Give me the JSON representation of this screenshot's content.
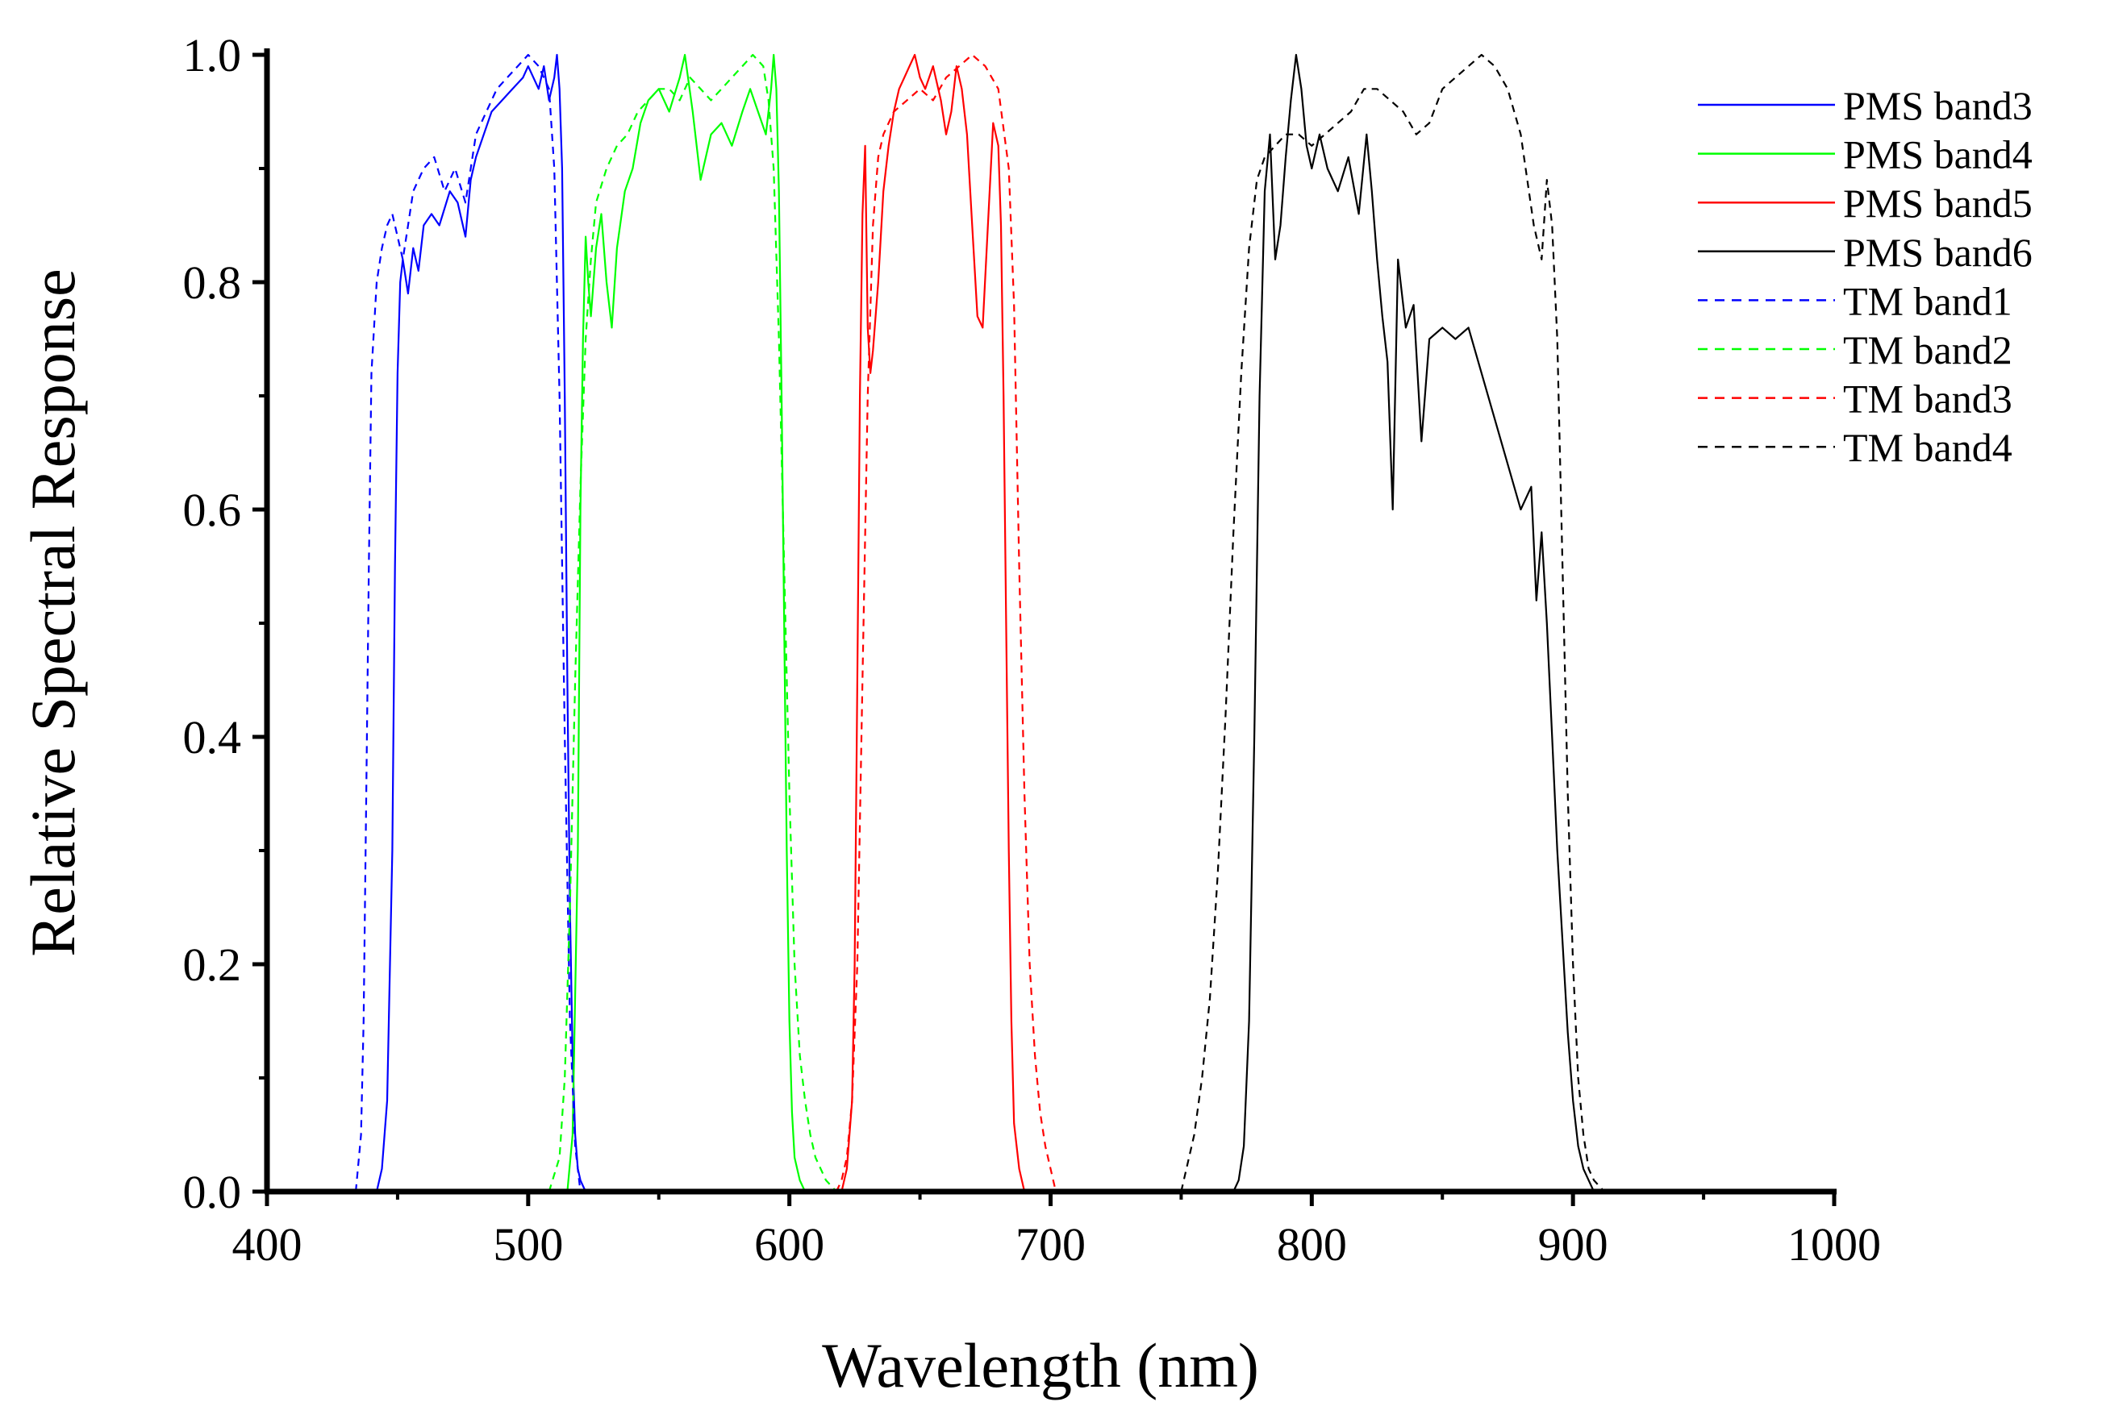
{
  "chart_data": {
    "type": "line",
    "title": "",
    "xlabel": "Wavelength (nm)",
    "ylabel": "Relative Spectral Response",
    "xlim": [
      400,
      1000
    ],
    "ylim": [
      0,
      1.0
    ],
    "grid": false,
    "legend_position": "top-right",
    "xticks": [
      "400",
      "500",
      "600",
      "700",
      "800",
      "900",
      "1000"
    ],
    "yticks": [
      "0.0",
      "0.2",
      "0.4",
      "0.6",
      "0.8",
      "1.0"
    ],
    "series": [
      {
        "name": "PMS band3",
        "color": "#0000ff",
        "dash": "solid",
        "x": [
          442,
          444,
          446,
          448,
          449,
          450,
          451,
          452,
          454,
          456,
          458,
          460,
          463,
          466,
          470,
          473,
          476,
          478,
          480,
          483,
          486,
          490,
          494,
          498,
          500,
          502,
          504,
          506,
          508,
          510,
          511,
          512,
          513,
          514,
          515,
          516,
          517,
          518,
          519,
          520,
          521,
          522
        ],
        "y": [
          0.0,
          0.02,
          0.08,
          0.3,
          0.55,
          0.72,
          0.8,
          0.82,
          0.79,
          0.83,
          0.81,
          0.85,
          0.86,
          0.85,
          0.88,
          0.87,
          0.84,
          0.89,
          0.91,
          0.93,
          0.95,
          0.96,
          0.97,
          0.98,
          0.99,
          0.98,
          0.97,
          0.99,
          0.96,
          0.98,
          1.0,
          0.97,
          0.9,
          0.7,
          0.45,
          0.25,
          0.12,
          0.05,
          0.02,
          0.01,
          0.005,
          0.0
        ]
      },
      {
        "name": "PMS band4",
        "color": "#00ff00",
        "dash": "solid",
        "x": [
          515,
          517,
          519,
          520,
          521,
          522,
          523,
          524,
          526,
          528,
          530,
          532,
          534,
          537,
          540,
          543,
          546,
          550,
          554,
          558,
          560,
          563,
          566,
          570,
          574,
          578,
          582,
          585,
          588,
          591,
          593,
          594,
          595,
          596,
          597,
          598,
          599,
          600,
          601,
          602,
          604,
          606
        ],
        "y": [
          0.0,
          0.05,
          0.3,
          0.6,
          0.75,
          0.84,
          0.8,
          0.77,
          0.83,
          0.86,
          0.8,
          0.76,
          0.83,
          0.88,
          0.9,
          0.94,
          0.96,
          0.97,
          0.95,
          0.98,
          1.0,
          0.95,
          0.89,
          0.93,
          0.94,
          0.92,
          0.95,
          0.97,
          0.95,
          0.93,
          0.97,
          1.0,
          0.97,
          0.88,
          0.7,
          0.5,
          0.3,
          0.15,
          0.07,
          0.03,
          0.01,
          0.0
        ]
      },
      {
        "name": "PMS band5",
        "color": "#ff0000",
        "dash": "solid",
        "x": [
          620,
          622,
          624,
          625,
          626,
          627,
          628,
          629,
          630,
          631,
          632,
          634,
          636,
          638,
          640,
          642,
          644,
          646,
          648,
          650,
          652,
          655,
          658,
          660,
          662,
          664,
          666,
          668,
          670,
          672,
          674,
          676,
          678,
          680,
          681,
          682,
          683,
          684,
          685,
          686,
          688,
          690
        ],
        "y": [
          0.0,
          0.02,
          0.08,
          0.2,
          0.45,
          0.7,
          0.86,
          0.92,
          0.76,
          0.72,
          0.74,
          0.8,
          0.88,
          0.92,
          0.95,
          0.97,
          0.98,
          0.99,
          1.0,
          0.98,
          0.97,
          0.99,
          0.96,
          0.93,
          0.95,
          0.99,
          0.97,
          0.93,
          0.85,
          0.77,
          0.76,
          0.85,
          0.94,
          0.92,
          0.85,
          0.7,
          0.5,
          0.3,
          0.15,
          0.06,
          0.02,
          0.0
        ]
      },
      {
        "name": "PMS band6",
        "color": "#000000",
        "dash": "solid",
        "x": [
          770,
          772,
          774,
          776,
          778,
          780,
          782,
          784,
          786,
          788,
          790,
          792,
          794,
          796,
          798,
          800,
          803,
          806,
          810,
          814,
          818,
          821,
          823,
          825,
          827,
          829,
          831,
          833,
          836,
          839,
          842,
          845,
          850,
          855,
          860,
          865,
          870,
          875,
          880,
          884,
          886,
          888,
          890,
          892,
          894,
          896,
          898,
          900,
          902,
          904,
          906,
          908
        ],
        "y": [
          0.0,
          0.01,
          0.04,
          0.15,
          0.4,
          0.7,
          0.88,
          0.93,
          0.82,
          0.85,
          0.91,
          0.96,
          1.0,
          0.97,
          0.92,
          0.9,
          0.93,
          0.9,
          0.88,
          0.91,
          0.86,
          0.93,
          0.88,
          0.82,
          0.77,
          0.73,
          0.6,
          0.82,
          0.76,
          0.78,
          0.66,
          0.75,
          0.76,
          0.75,
          0.76,
          0.72,
          0.68,
          0.64,
          0.6,
          0.62,
          0.52,
          0.58,
          0.5,
          0.4,
          0.3,
          0.22,
          0.14,
          0.08,
          0.04,
          0.02,
          0.01,
          0.0
        ]
      },
      {
        "name": "TM band1",
        "color": "#0000ff",
        "dash": "dashed",
        "x": [
          434,
          436,
          437,
          438,
          439,
          440,
          442,
          444,
          446,
          448,
          450,
          452,
          454,
          456,
          460,
          464,
          468,
          472,
          476,
          480,
          484,
          488,
          492,
          496,
          500,
          504,
          508,
          510,
          512,
          514,
          516,
          518,
          520
        ],
        "y": [
          0.0,
          0.05,
          0.15,
          0.35,
          0.55,
          0.72,
          0.8,
          0.83,
          0.85,
          0.86,
          0.84,
          0.82,
          0.85,
          0.88,
          0.9,
          0.91,
          0.88,
          0.9,
          0.87,
          0.93,
          0.95,
          0.97,
          0.98,
          0.99,
          1.0,
          0.99,
          0.97,
          0.9,
          0.7,
          0.4,
          0.15,
          0.04,
          0.0
        ]
      },
      {
        "name": "TM band2",
        "color": "#00ff00",
        "dash": "dashed",
        "x": [
          508,
          512,
          514,
          516,
          518,
          520,
          522,
          524,
          526,
          530,
          534,
          538,
          542,
          546,
          550,
          554,
          558,
          562,
          566,
          570,
          574,
          578,
          582,
          586,
          590,
          592,
          594,
          596,
          598,
          600,
          602,
          604,
          606,
          608,
          610,
          614,
          618
        ],
        "y": [
          0.0,
          0.03,
          0.1,
          0.25,
          0.45,
          0.62,
          0.75,
          0.82,
          0.87,
          0.9,
          0.92,
          0.93,
          0.95,
          0.96,
          0.97,
          0.97,
          0.96,
          0.98,
          0.97,
          0.96,
          0.97,
          0.98,
          0.99,
          1.0,
          0.99,
          0.96,
          0.9,
          0.75,
          0.55,
          0.35,
          0.2,
          0.12,
          0.08,
          0.05,
          0.03,
          0.01,
          0.0
        ]
      },
      {
        "name": "TM band3",
        "color": "#ff0000",
        "dash": "dashed",
        "x": [
          618,
          620,
          622,
          624,
          626,
          628,
          630,
          632,
          634,
          636,
          640,
          645,
          650,
          655,
          660,
          665,
          670,
          675,
          680,
          684,
          686,
          688,
          690,
          692,
          694,
          696,
          698,
          700,
          702
        ],
        "y": [
          0.0,
          0.01,
          0.03,
          0.08,
          0.2,
          0.45,
          0.7,
          0.85,
          0.91,
          0.93,
          0.95,
          0.96,
          0.97,
          0.96,
          0.98,
          0.99,
          1.0,
          0.99,
          0.97,
          0.9,
          0.78,
          0.55,
          0.35,
          0.2,
          0.12,
          0.07,
          0.04,
          0.02,
          0.0
        ]
      },
      {
        "name": "TM band4",
        "color": "#000000",
        "dash": "dashed",
        "x": [
          750,
          752,
          755,
          758,
          761,
          764,
          767,
          770,
          773,
          776,
          779,
          782,
          786,
          790,
          795,
          800,
          805,
          810,
          815,
          820,
          825,
          830,
          835,
          840,
          845,
          850,
          855,
          860,
          865,
          870,
          875,
          880,
          885,
          888,
          890,
          892,
          894,
          896,
          898,
          900,
          902,
          904,
          906,
          908,
          910,
          912
        ],
        "y": [
          0.0,
          0.02,
          0.05,
          0.1,
          0.17,
          0.28,
          0.42,
          0.58,
          0.72,
          0.83,
          0.89,
          0.91,
          0.92,
          0.93,
          0.93,
          0.92,
          0.93,
          0.94,
          0.95,
          0.97,
          0.97,
          0.96,
          0.95,
          0.93,
          0.94,
          0.97,
          0.98,
          0.99,
          1.0,
          0.99,
          0.97,
          0.93,
          0.85,
          0.82,
          0.89,
          0.85,
          0.75,
          0.55,
          0.35,
          0.2,
          0.1,
          0.05,
          0.02,
          0.01,
          0.005,
          0.0
        ]
      }
    ]
  }
}
